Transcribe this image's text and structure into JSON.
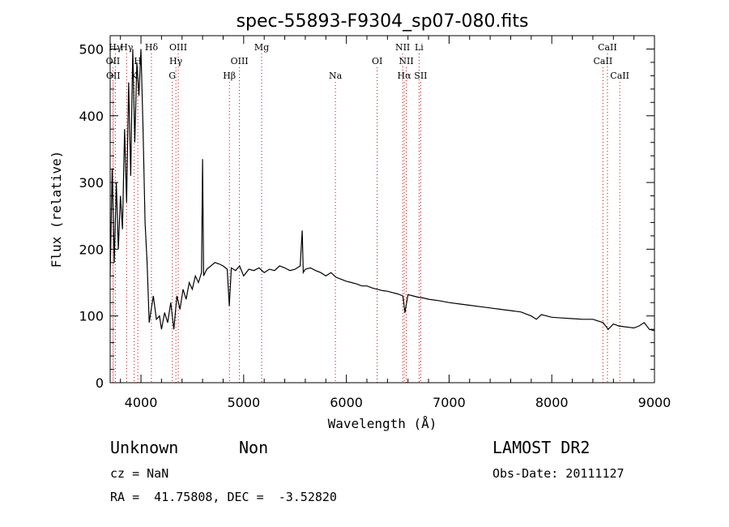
{
  "chart_data": {
    "type": "line",
    "title": "spec-55893-F9304_sp07-080.fits",
    "xlabel": "Wavelength (Å)",
    "ylabel": "Flux (relative)",
    "xlim": [
      3700,
      9000
    ],
    "ylim": [
      0,
      520
    ],
    "x_ticks": [
      4000,
      5000,
      6000,
      7000,
      8000,
      9000
    ],
    "y_ticks": [
      0,
      100,
      200,
      300,
      400,
      500
    ],
    "grid": false,
    "line_color": "#000000",
    "marker_color": "#cc0000",
    "series": [
      {
        "x": [
          3700,
          3720,
          3740,
          3760,
          3780,
          3800,
          3820,
          3840,
          3860,
          3880,
          3900,
          3920,
          3940,
          3960,
          3980,
          4000,
          4020,
          4040,
          4060,
          4080,
          4100,
          4120,
          4150,
          4180,
          4200,
          4230,
          4260,
          4290,
          4320,
          4350,
          4380,
          4410,
          4440,
          4470,
          4500,
          4530,
          4560,
          4590,
          4600,
          4610,
          4640,
          4680,
          4720,
          4760,
          4800,
          4840,
          4860,
          4880,
          4920,
          4960,
          5000,
          5050,
          5100,
          5150,
          5200,
          5250,
          5300,
          5350,
          5400,
          5450,
          5500,
          5550,
          5570,
          5580,
          5600,
          5650,
          5700,
          5750,
          5800,
          5850,
          5900,
          5950,
          6000,
          6050,
          6100,
          6150,
          6200,
          6250,
          6300,
          6350,
          6400,
          6450,
          6500,
          6550,
          6570,
          6600,
          6650,
          6700,
          6750,
          6800,
          6900,
          7000,
          7100,
          7200,
          7300,
          7400,
          7500,
          7600,
          7700,
          7800,
          7850,
          7900,
          8000,
          8100,
          8200,
          8300,
          8400,
          8500,
          8550,
          8600,
          8650,
          8700,
          8750,
          8800,
          8850,
          8900,
          8950,
          9000
        ],
        "values": [
          160,
          320,
          180,
          300,
          200,
          280,
          230,
          380,
          270,
          450,
          310,
          500,
          360,
          480,
          430,
          500,
          380,
          240,
          180,
          90,
          110,
          130,
          95,
          100,
          80,
          105,
          90,
          120,
          80,
          130,
          110,
          140,
          125,
          150,
          140,
          160,
          150,
          165,
          335,
          160,
          170,
          175,
          180,
          178,
          175,
          170,
          115,
          172,
          168,
          175,
          160,
          170,
          168,
          172,
          165,
          170,
          168,
          175,
          172,
          168,
          170,
          175,
          228,
          165,
          170,
          172,
          168,
          165,
          160,
          165,
          158,
          155,
          152,
          150,
          148,
          145,
          145,
          142,
          140,
          138,
          137,
          135,
          133,
          130,
          105,
          132,
          130,
          128,
          127,
          125,
          123,
          120,
          118,
          116,
          114,
          112,
          110,
          108,
          106,
          100,
          95,
          102,
          98,
          97,
          96,
          95,
          95,
          90,
          80,
          88,
          85,
          84,
          83,
          82,
          85,
          90,
          80,
          78
        ]
      }
    ],
    "lines": [
      {
        "label": "OII",
        "x": 3727,
        "row": 2
      },
      {
        "label": "OII",
        "x": 3730,
        "row": 3
      },
      {
        "label": "Hγ",
        "x": 3750,
        "row": 1
      },
      {
        "label": "Hγ",
        "x": 3860,
        "row": 1
      },
      {
        "label": "H",
        "x": 3969,
        "row": 2
      },
      {
        "label": "K",
        "x": 3934,
        "row": 3
      },
      {
        "label": "Hδ",
        "x": 4102,
        "row": 1
      },
      {
        "label": "OIII",
        "x": 4363,
        "row": 1
      },
      {
        "label": "Hγ",
        "x": 4340,
        "row": 2
      },
      {
        "label": "G",
        "x": 4305,
        "row": 3
      },
      {
        "label": "Hβ",
        "x": 4861,
        "row": 3
      },
      {
        "label": "OIII",
        "x": 4959,
        "row": 2
      },
      {
        "label": "Mg",
        "x": 5175,
        "row": 1
      },
      {
        "label": "Na",
        "x": 5893,
        "row": 3
      },
      {
        "label": "OI",
        "x": 6300,
        "row": 2
      },
      {
        "label": "NII",
        "x": 6548,
        "row": 1
      },
      {
        "label": "NII",
        "x": 6583,
        "row": 2
      },
      {
        "label": "Hα",
        "x": 6563,
        "row": 3
      },
      {
        "label": "Li",
        "x": 6708,
        "row": 1
      },
      {
        "label": "SII",
        "x": 6724,
        "row": 3
      },
      {
        "label": "CaII",
        "x": 8542,
        "row": 1
      },
      {
        "label": "CaII",
        "x": 8498,
        "row": 2
      },
      {
        "label": "CaII",
        "x": 8662,
        "row": 3
      }
    ]
  },
  "info": {
    "object_class": "Unknown",
    "subclass": "Non",
    "survey": "LAMOST DR2",
    "cz": "cz = NaN",
    "obs_date": "Obs-Date: 20111127",
    "coords": "RA =  41.75808, DEC =  -3.52820"
  }
}
